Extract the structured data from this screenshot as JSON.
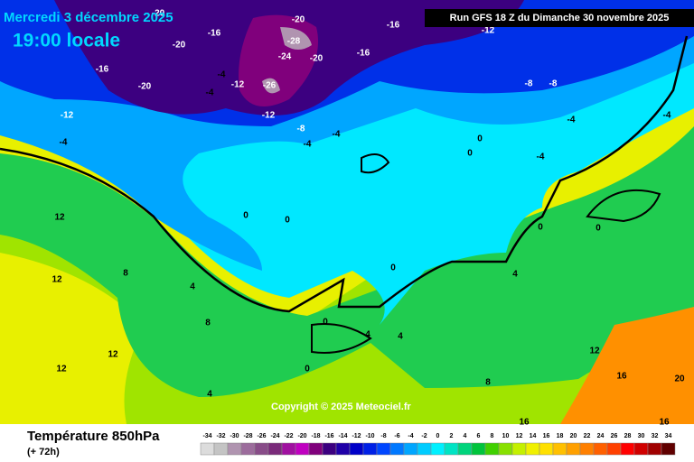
{
  "header": {
    "date": "Mercredi 3 décembre 2025",
    "time": "19:00 locale",
    "run": "Run GFS 18 Z du Dimanche 30 novembre 2025",
    "copyright": "Copyright © 2025 Meteociel.fr"
  },
  "footer": {
    "title": "Température 850hPa",
    "lead": "(+ 72h)"
  },
  "scale": [
    {
      "value": -34,
      "color": "#dcdcdc"
    },
    {
      "value": -32,
      "color": "#c4c4c4"
    },
    {
      "value": -30,
      "color": "#b094b0"
    },
    {
      "value": -28,
      "color": "#9c6c9c"
    },
    {
      "value": -26,
      "color": "#884c88"
    },
    {
      "value": -24,
      "color": "#7a2a7a"
    },
    {
      "value": -22,
      "color": "#a010a0"
    },
    {
      "value": -20,
      "color": "#c000c0"
    },
    {
      "value": -18,
      "color": "#80007c"
    },
    {
      "value": -16,
      "color": "#3c0080"
    },
    {
      "value": -14,
      "color": "#2000a8"
    },
    {
      "value": -12,
      "color": "#0000c8"
    },
    {
      "value": -10,
      "color": "#0020e6"
    },
    {
      "value": -8,
      "color": "#0046ff"
    },
    {
      "value": -6,
      "color": "#0078ff"
    },
    {
      "value": -4,
      "color": "#00a6ff"
    },
    {
      "value": -2,
      "color": "#00ccff"
    },
    {
      "value": 0,
      "color": "#00f0ff"
    },
    {
      "value": 2,
      "color": "#00e4c4"
    },
    {
      "value": 4,
      "color": "#00d47c"
    },
    {
      "value": 6,
      "color": "#00c43c"
    },
    {
      "value": 8,
      "color": "#40d000"
    },
    {
      "value": 10,
      "color": "#88e000"
    },
    {
      "value": 12,
      "color": "#c4f000"
    },
    {
      "value": 14,
      "color": "#f0f000"
    },
    {
      "value": 16,
      "color": "#ffe000"
    },
    {
      "value": 18,
      "color": "#ffc000"
    },
    {
      "value": 20,
      "color": "#ffa000"
    },
    {
      "value": 22,
      "color": "#ff8000"
    },
    {
      "value": 24,
      "color": "#ff6000"
    },
    {
      "value": 26,
      "color": "#ff4000"
    },
    {
      "value": 28,
      "color": "#ff0000"
    },
    {
      "value": 30,
      "color": "#d00000"
    },
    {
      "value": 32,
      "color": "#a00000"
    },
    {
      "value": 34,
      "color": "#600000"
    }
  ],
  "map_labels": [
    -20,
    -20,
    -16,
    -20,
    -28,
    -20,
    -24,
    -16,
    -16,
    -12,
    -16,
    -20,
    -4,
    -12,
    -26,
    -4,
    -12,
    -12,
    -8,
    -4,
    -8,
    -8,
    -4,
    -4,
    -4,
    -4,
    0,
    -4,
    0,
    0,
    0,
    0,
    0,
    0,
    4,
    8,
    12,
    12,
    12,
    12,
    4,
    4,
    4,
    8,
    16,
    16,
    20,
    12,
    8,
    4,
    0,
    0,
    16
  ]
}
